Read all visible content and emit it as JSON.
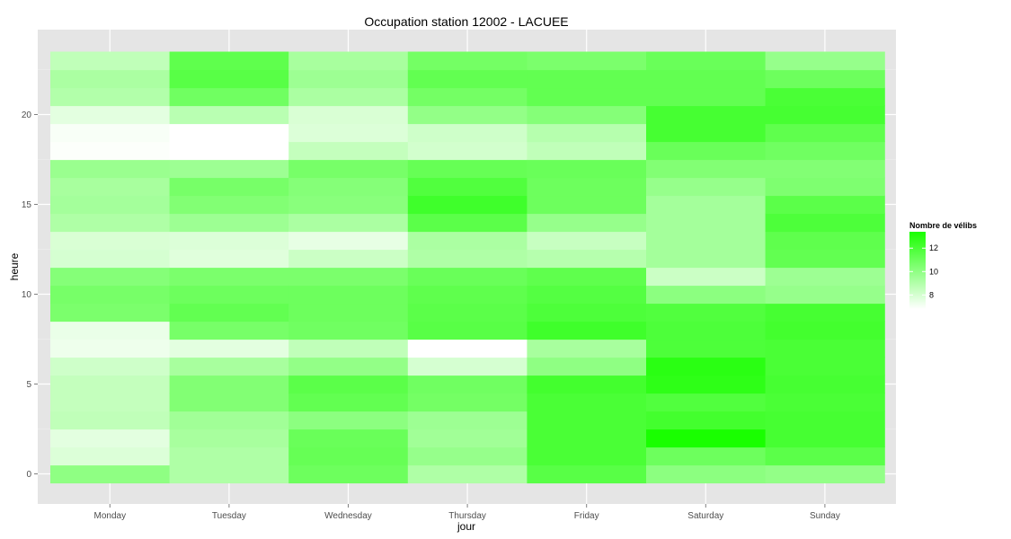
{
  "chart_data": {
    "type": "heatmap",
    "title": "Occupation station 12002 - LACUEE",
    "xlabel": "jour",
    "ylabel": "heure",
    "categories": [
      "Monday",
      "Tuesday",
      "Wednesday",
      "Thursday",
      "Friday",
      "Saturday",
      "Sunday"
    ],
    "y": [
      0,
      1,
      2,
      3,
      4,
      5,
      6,
      7,
      8,
      9,
      10,
      11,
      12,
      13,
      14,
      15,
      16,
      17,
      18,
      19,
      20,
      21,
      22,
      23
    ],
    "ylim": [
      -0.5,
      23.5
    ],
    "yticks": [
      0,
      5,
      10,
      15,
      20
    ],
    "grid": true,
    "legend": {
      "title": "Nombre de vélibs",
      "position": "right",
      "ticks": [
        8,
        10,
        12
      ],
      "range": [
        6.8,
        13.4
      ],
      "color_low": "#ffffff",
      "color_high": "#19ff00"
    },
    "values": [
      [
        10,
        7.8,
        7.6,
        8.6,
        8.5,
        8.5,
        8.2,
        7.3,
        7.4,
        10.6,
        10.7,
        10.3,
        8.0,
        7.9,
        9.1,
        9.4,
        9.3,
        9.7,
        6.9,
        7.0,
        7.6,
        9.0,
        9.2,
        8.6
      ],
      [
        9.1,
        9.1,
        9.3,
        9.5,
        10.4,
        10.4,
        9.3,
        7.6,
        10.7,
        11.3,
        11.0,
        10.6,
        7.7,
        7.8,
        9.6,
        10.4,
        10.7,
        9.6,
        6.8,
        6.8,
        8.8,
        10.9,
        11.6,
        11.4
      ],
      [
        11.0,
        11.2,
        11.1,
        10.1,
        11.3,
        11.5,
        9.9,
        8.6,
        10.9,
        11.0,
        11.0,
        10.6,
        8.3,
        7.5,
        9.2,
        10.2,
        10.3,
        10.7,
        8.5,
        7.8,
        7.9,
        9.2,
        9.6,
        9.3
      ],
      [
        9.1,
        9.8,
        9.5,
        9.6,
        10.8,
        10.9,
        8.0,
        6.8,
        11.6,
        11.5,
        11.4,
        11.1,
        9.1,
        9.2,
        11.5,
        12.3,
        11.8,
        11.2,
        8.1,
        8.2,
        9.9,
        10.8,
        11.3,
        10.8
      ],
      [
        11.6,
        12.0,
        12.0,
        12.0,
        12.0,
        12.2,
        10.0,
        9.3,
        12.3,
        11.9,
        11.7,
        11.4,
        8.9,
        8.4,
        9.8,
        11.0,
        11.0,
        11.1,
        8.6,
        8.9,
        10.3,
        11.3,
        11.3,
        10.6
      ],
      [
        10.1,
        11.0,
        13.4,
        12.2,
        11.8,
        12.8,
        12.9,
        11.9,
        11.9,
        11.8,
        10.1,
        8.3,
        9.4,
        9.4,
        9.4,
        9.4,
        9.8,
        10.4,
        11.1,
        12.1,
        12.1,
        11.3,
        11.3,
        11.1
      ],
      [
        9.9,
        11.5,
        12.1,
        12.1,
        12.0,
        12.1,
        12.0,
        12.0,
        12.2,
        12.1,
        9.8,
        9.6,
        11.3,
        11.4,
        11.9,
        11.5,
        10.5,
        10.4,
        10.9,
        11.4,
        12.1,
        12.0,
        11.0,
        9.8
      ]
    ]
  }
}
